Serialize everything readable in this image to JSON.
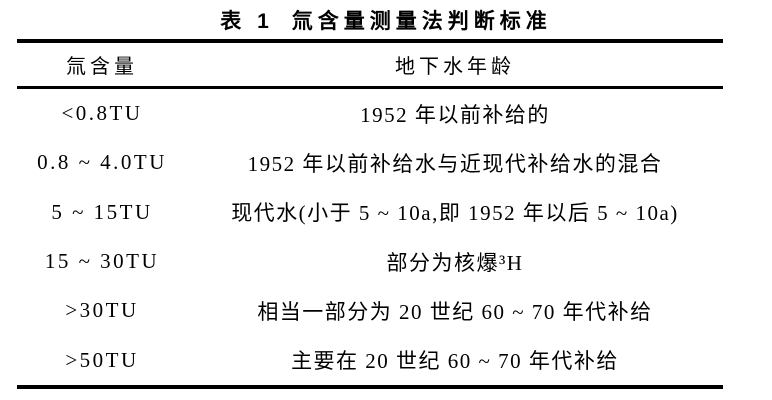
{
  "caption": {
    "label": "表 1",
    "text": "氚含量测量法判断标准"
  },
  "table": {
    "headers": [
      "氚含量",
      "地下水年龄"
    ],
    "rows": [
      [
        "<0.8TU",
        "1952 年以前补给的"
      ],
      [
        "0.8 ~ 4.0TU",
        "1952 年以前补给水与近现代补给水的混合"
      ],
      [
        "5 ~ 15TU",
        "现代水(小于 5 ~ 10a,即 1952 年以后 5 ~ 10a)"
      ],
      [
        "15 ~ 30TU",
        "部分为核爆³H"
      ],
      [
        ">30TU",
        "相当一部分为 20 世纪 60 ~ 70 年代补给"
      ],
      [
        ">50TU",
        "主要在 20 世纪 60 ~ 70 年代补给"
      ]
    ]
  },
  "colors": {
    "background": "#ffffff",
    "text": "#000000",
    "rule": "#000000"
  }
}
